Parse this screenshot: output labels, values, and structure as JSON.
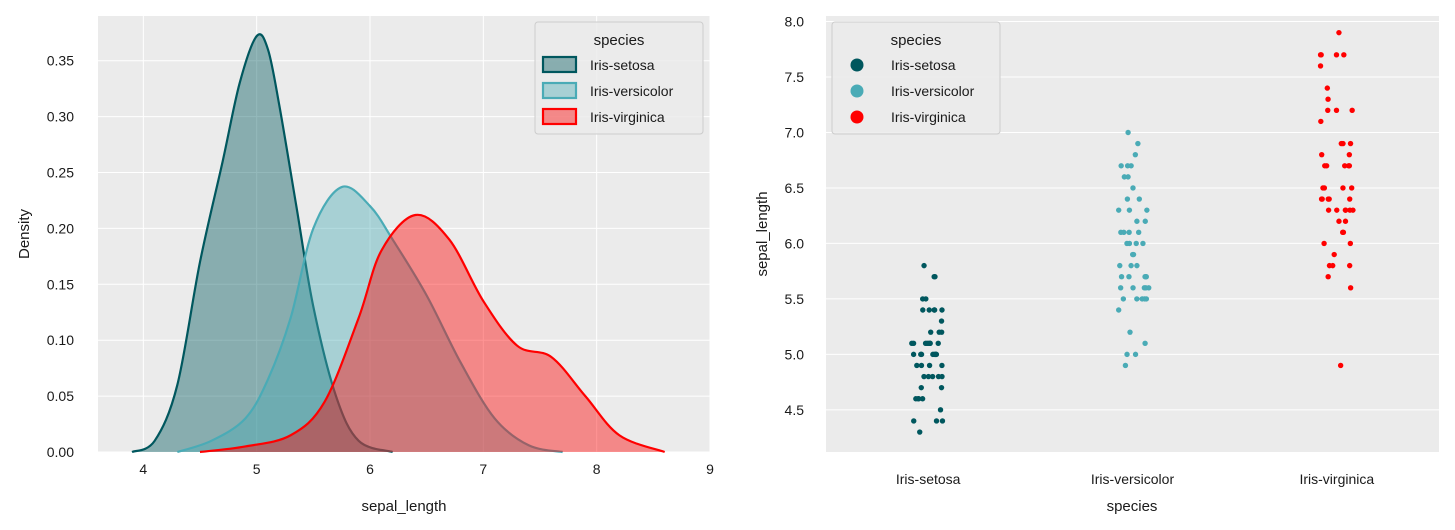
{
  "colors": {
    "setosa": "#00575e",
    "versicolor": "#4aabb6",
    "virginica": "#ff0000",
    "panel_bg": "#ebebeb",
    "grid": "#ffffff"
  },
  "chart_data": [
    {
      "type": "area",
      "xlabel": "sepal_length",
      "ylabel": "Density",
      "xlim": [
        3.6,
        9.0
      ],
      "ylim": [
        0.0,
        0.39
      ],
      "xticks": [
        4,
        5,
        6,
        7,
        8,
        9
      ],
      "xtick_labels": [
        "4",
        "5",
        "6",
        "7",
        "8",
        "9"
      ],
      "yticks": [
        0.0,
        0.05,
        0.1,
        0.15,
        0.2,
        0.25,
        0.3,
        0.35
      ],
      "ytick_labels": [
        "0.00",
        "0.05",
        "0.10",
        "0.15",
        "0.20",
        "0.25",
        "0.30",
        "0.35"
      ],
      "grid": true,
      "legend": {
        "title": "species",
        "placement": "top-right",
        "labels": [
          "Iris-setosa",
          "Iris-versicolor",
          "Iris-virginica"
        ]
      },
      "series": [
        {
          "name": "Iris-setosa",
          "color_key": "setosa",
          "x": [
            3.9,
            4.1,
            4.3,
            4.5,
            4.7,
            4.85,
            5.0,
            5.1,
            5.2,
            5.35,
            5.5,
            5.7,
            5.9,
            6.2
          ],
          "y": [
            0.0,
            0.01,
            0.06,
            0.17,
            0.26,
            0.33,
            0.372,
            0.36,
            0.31,
            0.22,
            0.13,
            0.05,
            0.01,
            0.0
          ]
        },
        {
          "name": "Iris-versicolor",
          "color_key": "versicolor",
          "x": [
            4.3,
            4.6,
            4.9,
            5.1,
            5.3,
            5.5,
            5.75,
            6.0,
            6.2,
            6.5,
            6.8,
            7.1,
            7.4,
            7.7
          ],
          "y": [
            0.0,
            0.01,
            0.03,
            0.065,
            0.12,
            0.2,
            0.237,
            0.22,
            0.19,
            0.14,
            0.08,
            0.03,
            0.006,
            0.0
          ]
        },
        {
          "name": "Iris-virginica",
          "color_key": "virginica",
          "x": [
            4.5,
            4.9,
            5.3,
            5.6,
            5.9,
            6.1,
            6.4,
            6.7,
            7.0,
            7.3,
            7.6,
            7.9,
            8.2,
            8.6
          ],
          "y": [
            0.0,
            0.005,
            0.015,
            0.045,
            0.12,
            0.18,
            0.212,
            0.19,
            0.135,
            0.095,
            0.085,
            0.05,
            0.015,
            0.0
          ]
        }
      ]
    },
    {
      "type": "scatter",
      "xlabel": "species",
      "ylabel": "sepal_length",
      "categories": [
        "Iris-setosa",
        "Iris-versicolor",
        "Iris-virginica"
      ],
      "ylim": [
        4.12,
        8.05
      ],
      "yticks": [
        4.5,
        5.0,
        5.5,
        6.0,
        6.5,
        7.0,
        7.5,
        8.0
      ],
      "ytick_labels": [
        "4.5",
        "5.0",
        "5.5",
        "6.0",
        "6.5",
        "7.0",
        "7.5",
        "8.0"
      ],
      "grid": true,
      "legend": {
        "title": "species",
        "placement": "top-left",
        "labels": [
          "Iris-setosa",
          "Iris-versicolor",
          "Iris-virginica"
        ]
      },
      "series": [
        {
          "name": "Iris-setosa",
          "color_key": "setosa",
          "values": [
            5.1,
            4.9,
            4.7,
            4.6,
            5.0,
            5.4,
            4.6,
            5.0,
            4.4,
            4.9,
            5.4,
            4.8,
            4.8,
            4.3,
            5.8,
            5.7,
            5.4,
            5.1,
            5.7,
            5.1,
            5.4,
            5.1,
            4.6,
            5.1,
            4.8,
            5.0,
            5.0,
            5.2,
            5.2,
            4.7,
            4.8,
            5.4,
            5.2,
            5.5,
            4.9,
            5.0,
            5.5,
            4.9,
            4.4,
            5.1,
            5.0,
            4.5,
            4.4,
            5.0,
            5.1,
            4.8,
            5.1,
            4.6,
            5.3,
            5.0
          ]
        },
        {
          "name": "Iris-versicolor",
          "color_key": "versicolor",
          "values": [
            7.0,
            6.4,
            6.9,
            5.5,
            6.5,
            5.7,
            6.3,
            4.9,
            6.6,
            5.2,
            5.0,
            5.9,
            6.0,
            6.1,
            5.6,
            6.7,
            5.6,
            5.8,
            6.2,
            5.6,
            5.9,
            6.1,
            6.3,
            6.1,
            6.4,
            6.6,
            6.8,
            6.7,
            6.0,
            5.7,
            5.5,
            5.5,
            5.8,
            6.0,
            5.4,
            6.0,
            6.7,
            6.3,
            5.6,
            5.5,
            5.5,
            6.1,
            5.8,
            5.0,
            5.6,
            5.7,
            5.7,
            6.2,
            5.1,
            5.7
          ]
        },
        {
          "name": "Iris-virginica",
          "color_key": "virginica",
          "values": [
            6.3,
            5.8,
            7.1,
            6.3,
            6.5,
            7.6,
            4.9,
            7.3,
            6.7,
            7.2,
            6.5,
            6.4,
            6.8,
            5.7,
            5.8,
            6.4,
            6.5,
            7.7,
            7.7,
            6.0,
            6.9,
            5.6,
            7.7,
            6.3,
            6.7,
            7.2,
            6.2,
            6.1,
            6.4,
            7.2,
            7.4,
            7.9,
            6.4,
            6.3,
            6.1,
            7.7,
            6.3,
            6.4,
            6.0,
            6.9,
            6.7,
            6.9,
            5.8,
            6.8,
            6.7,
            6.7,
            6.3,
            6.5,
            6.2,
            5.9
          ]
        }
      ]
    }
  ]
}
